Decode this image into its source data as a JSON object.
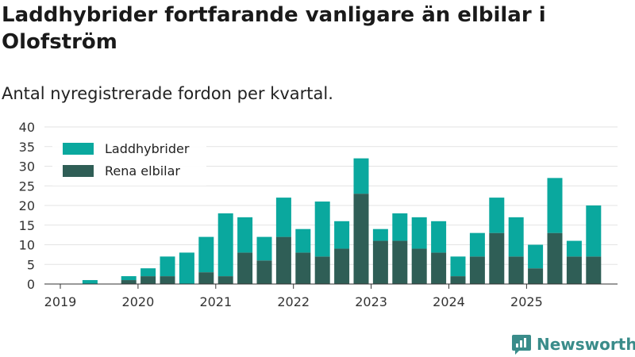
{
  "chart_data": {
    "type": "bar",
    "stacked": true,
    "title": "Laddhybrider fortfarande vanligare än elbilar i Olofström",
    "subtitle": "Antal nyregistrerade fordon per kvartal.",
    "ylim": [
      0,
      40
    ],
    "yticks": [
      0,
      5,
      10,
      15,
      20,
      25,
      30,
      35,
      40
    ],
    "year_labels": [
      "2019",
      "2020",
      "2021",
      "2022",
      "2023",
      "2024",
      "2025"
    ],
    "grid": true,
    "legend_position": "top-left",
    "categories": [
      "2019 Q1",
      "2019 Q2",
      "2019 Q3",
      "2019 Q4",
      "2020 Q1",
      "2020 Q2",
      "2020 Q3",
      "2020 Q4",
      "2021 Q1",
      "2021 Q2",
      "2021 Q3",
      "2021 Q4",
      "2022 Q1",
      "2022 Q2",
      "2022 Q3",
      "2022 Q4",
      "2023 Q1",
      "2023 Q2",
      "2023 Q3",
      "2023 Q4",
      "2024 Q1",
      "2024 Q2",
      "2024 Q3",
      "2024 Q4",
      "2025 Q1",
      "2025 Q2",
      "2025 Q3",
      "2025 Q4"
    ],
    "series": [
      {
        "name": "Rena elbilar",
        "color": "#2f5e56",
        "values": [
          0,
          0,
          0,
          1,
          2,
          2,
          0,
          3,
          2,
          8,
          6,
          12,
          8,
          7,
          9,
          23,
          11,
          11,
          9,
          8,
          2,
          7,
          13,
          7,
          4,
          13,
          7,
          7
        ]
      },
      {
        "name": "Laddhybrider",
        "color": "#0aa89e",
        "values": [
          0,
          1,
          0,
          1,
          2,
          5,
          8,
          9,
          16,
          9,
          6,
          10,
          6,
          14,
          7,
          9,
          3,
          7,
          8,
          8,
          5,
          6,
          9,
          10,
          6,
          14,
          4,
          13
        ]
      }
    ]
  },
  "legend_order": [
    "Laddhybrider",
    "Rena elbilar"
  ],
  "brand": {
    "name": "Newsworthy",
    "logo_icon": "newsworthy-logo-icon",
    "color": "#3a8c8a"
  }
}
